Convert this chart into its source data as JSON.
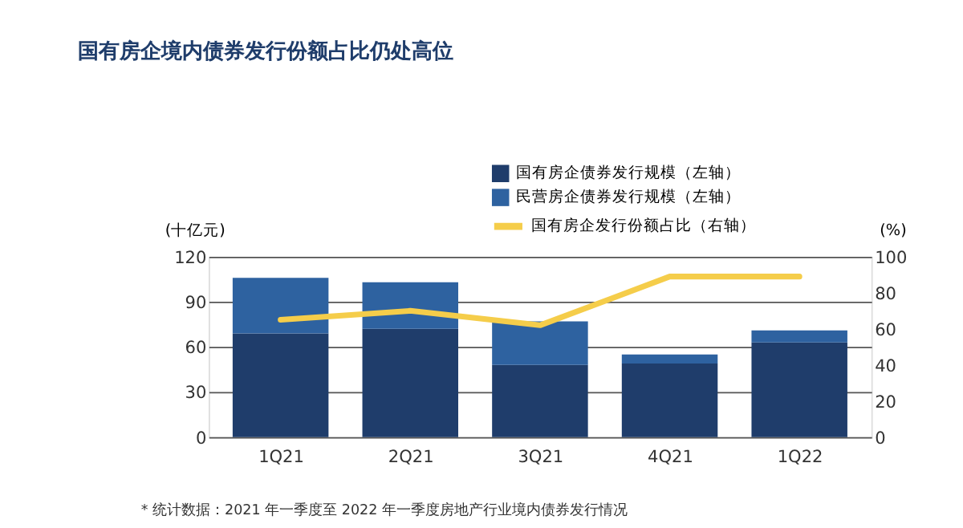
{
  "chart_data": {
    "type": "bar",
    "stacked": true,
    "title": "国有房企境内债券发行份额占比仍处高位",
    "ylabel": "(十亿元)",
    "y2label": "(%)",
    "categories": [
      "1Q21",
      "2Q21",
      "3Q21",
      "4Q21",
      "1Q22"
    ],
    "series": [
      {
        "name": "国有房企债券发行规模（左轴）",
        "color": "#1f3d6b",
        "values": [
          69,
          72,
          48,
          49,
          63
        ]
      },
      {
        "name": "民营房企债券发行规模（左轴）",
        "color": "#2e62a0",
        "values": [
          37,
          31,
          29,
          6,
          8
        ]
      },
      {
        "name": "国有房企发行份额占比（右轴）",
        "type": "line",
        "axis": "y2",
        "color": "#f5cd4a",
        "values": [
          65,
          70,
          62,
          89,
          89
        ]
      }
    ],
    "ylim": [
      0,
      120
    ],
    "yticks": [
      0,
      30,
      60,
      90,
      120
    ],
    "y2lim": [
      0,
      100
    ],
    "y2ticks": [
      0,
      20,
      40,
      60,
      80,
      100
    ],
    "grid": "y",
    "legend": "top right",
    "annotations": [
      "*  统计数据：2021 年一季度至 2022 年一季度房地产行业境内债券发行情况"
    ]
  }
}
